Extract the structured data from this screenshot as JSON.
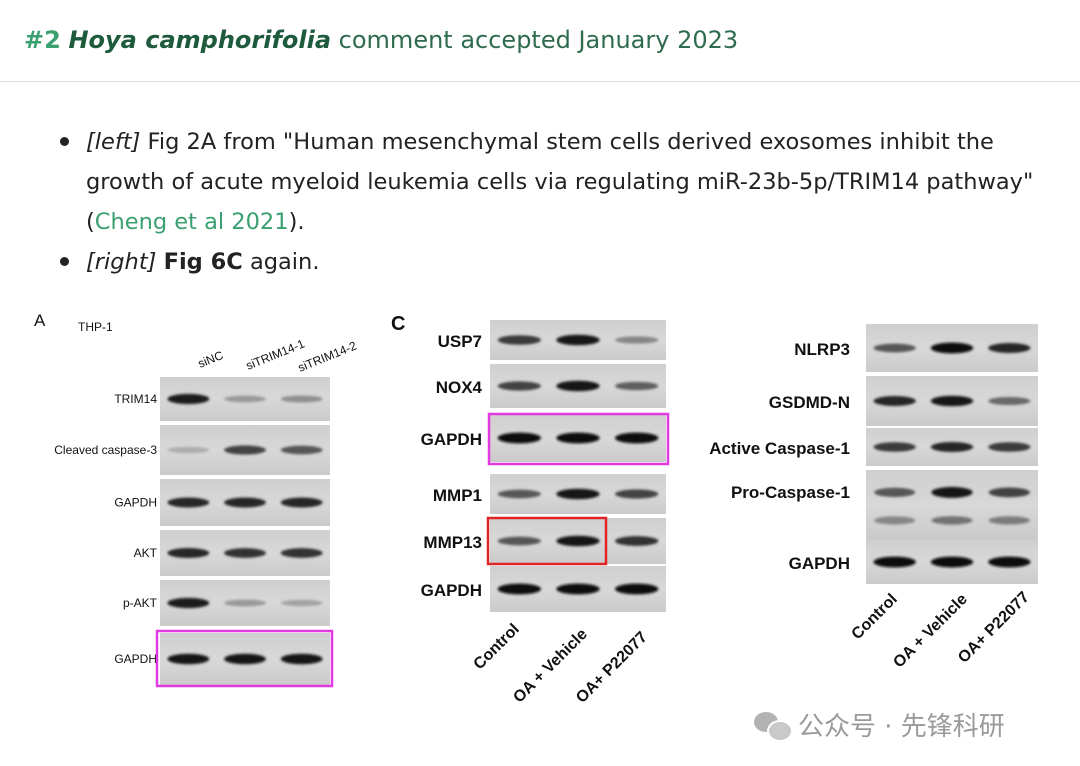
{
  "header": {
    "num": "#2",
    "species": "Hoya camphorifolia",
    "rest": " comment accepted January 2023"
  },
  "bullets": [
    {
      "tag": "[left]",
      "text_before": " Fig 2A from \"Human mesenchymal stem cells derived exosomes inhibit the growth of acute myeloid leukemia cells via regulating miR-23b-5p/TRIM14 pathway\" (",
      "link": "Cheng et al 2021",
      "text_after": ")."
    },
    {
      "tag": "[right]",
      "bold": "Fig 6C",
      "text_after": " again."
    }
  ],
  "figure_a": {
    "panel": "A",
    "cell_line": "THP-1",
    "lanes": [
      "siNC",
      "siTRIM14-1",
      "siTRIM14-2"
    ],
    "rows": [
      "TRIM14",
      "Cleaved caspase-3",
      "GAPDH",
      "AKT",
      "p-AKT",
      "GAPDH"
    ],
    "highlight_color": "#e23ae2"
  },
  "figure_c": {
    "panel": "C",
    "rows_left": [
      "USP7",
      "NOX4",
      "GAPDH",
      "MMP1",
      "MMP13",
      "GAPDH"
    ],
    "lanes_left": [
      "Control",
      "OA + Vehicle",
      "OA+ P22077"
    ],
    "rows_right": [
      "NLRP3",
      "GSDMD-N",
      "Active Caspase-1",
      "Pro-Caspase-1",
      "GAPDH"
    ],
    "lanes_right": [
      "Control",
      "OA + Vehicle",
      "OA+ P22077"
    ],
    "highlight_magenta": "#e23ae2",
    "highlight_red": "#e02424"
  },
  "watermark": {
    "text": "公众号 · 先锋科研",
    "icon": "wechat-icon"
  }
}
